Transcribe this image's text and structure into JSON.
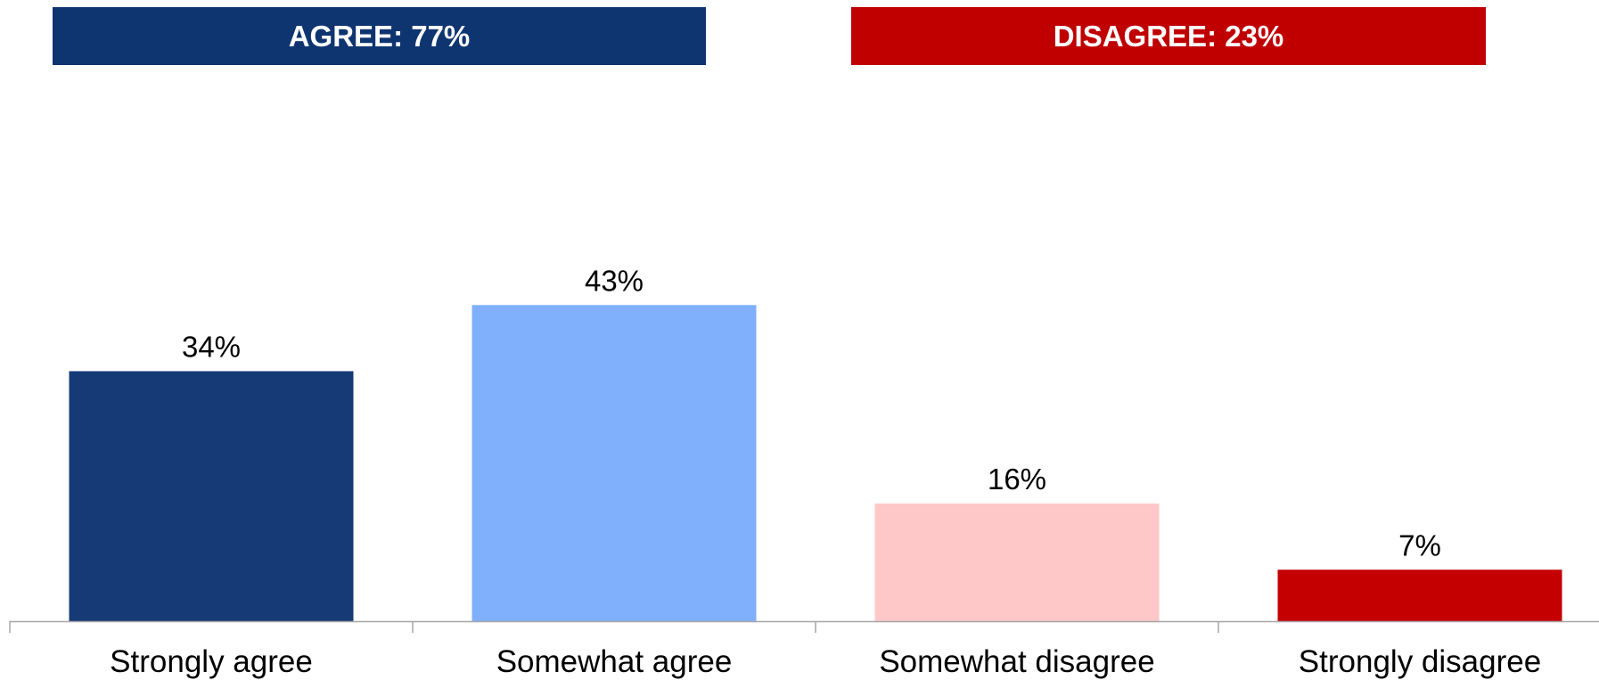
{
  "summary": {
    "agree": {
      "label": "AGREE: 77%",
      "color": "#0f3570"
    },
    "disagree": {
      "label": "DISAGREE: 23%",
      "color": "#c00000"
    }
  },
  "chart_data": {
    "type": "bar",
    "categories": [
      "Strongly agree",
      "Somewhat agree",
      "Somewhat disagree",
      "Strongly disagree"
    ],
    "values": [
      34,
      43,
      16,
      7
    ],
    "value_labels": [
      "34%",
      "43%",
      "16%",
      "7%"
    ],
    "colors": [
      "#153a75",
      "#80b0fc",
      "#fec8c8",
      "#c40000"
    ],
    "unit": "%",
    "title": "",
    "xlabel": "",
    "ylabel": "",
    "grid": false,
    "legend": "none"
  }
}
